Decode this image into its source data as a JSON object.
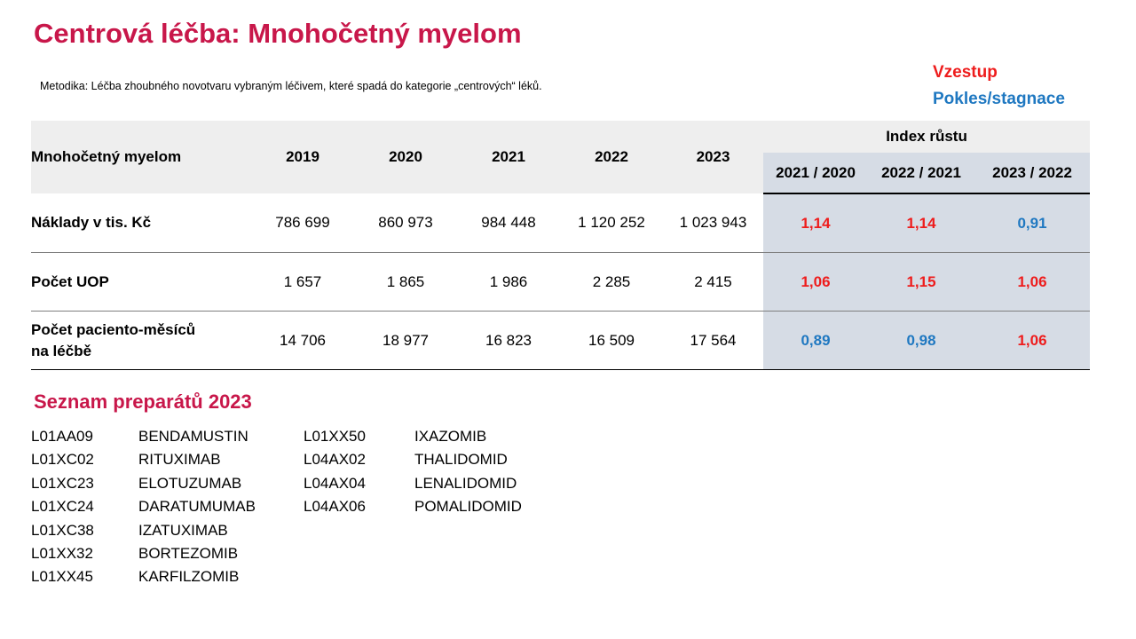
{
  "header": {
    "title": "Centrová léčba: Mnohočetný myelom",
    "methodology": "Metodika: Léčba zhoubného novotvaru vybraným léčivem, které spadá do kategorie „centrových“ léků."
  },
  "legend": [
    {
      "label": "Vzestup",
      "color": "#ee1c1c"
    },
    {
      "label": "Pokles/stagnace",
      "color": "#1f78c1"
    }
  ],
  "table": {
    "row_header": "Mnohočetný myelom",
    "years": [
      "2019",
      "2020",
      "2021",
      "2022",
      "2023"
    ],
    "index_group": "Index růstu",
    "index_columns": [
      "2021 / 2020",
      "2022 / 2021",
      "2023 / 2022"
    ],
    "rows": [
      {
        "label": "Náklady v tis. Kč",
        "values": [
          "786 699",
          "860 973",
          "984 448",
          "1 120 252",
          "1 023 943"
        ],
        "indices": [
          "1,14",
          "1,14",
          "0,91"
        ]
      },
      {
        "label": "Počet UOP",
        "values": [
          "1 657",
          "1 865",
          "1 986",
          "2 285",
          "2 415"
        ],
        "indices": [
          "1,06",
          "1,15",
          "1,06"
        ]
      },
      {
        "label": "Počet paciento-měsíců na léčbě",
        "values": [
          "14 706",
          "18 977",
          "16 823",
          "16 509",
          "17 564"
        ],
        "indices": [
          "0,89",
          "0,98",
          "1,06"
        ]
      }
    ]
  },
  "list": {
    "title": "Seznam preparátů 2023",
    "items": [
      [
        "L01AA09",
        "BENDAMUSTIN"
      ],
      [
        "L01XC02",
        "RITUXIMAB"
      ],
      [
        "L01XC23",
        "ELOTUZUMAB"
      ],
      [
        "L01XC24",
        "DARATUMUMAB"
      ],
      [
        "L01XC38",
        "IZATUXIMAB"
      ],
      [
        "L01XX32",
        "BORTEZOMIB"
      ],
      [
        "L01XX45",
        "KARFILZOMIB"
      ],
      [
        "L01XX50",
        "IXAZOMIB"
      ],
      [
        "L04AX02",
        "THALIDOMID"
      ],
      [
        "L04AX04",
        "LENALIDOMID"
      ],
      [
        "L04AX06",
        "POMALIDOMID"
      ]
    ]
  }
}
